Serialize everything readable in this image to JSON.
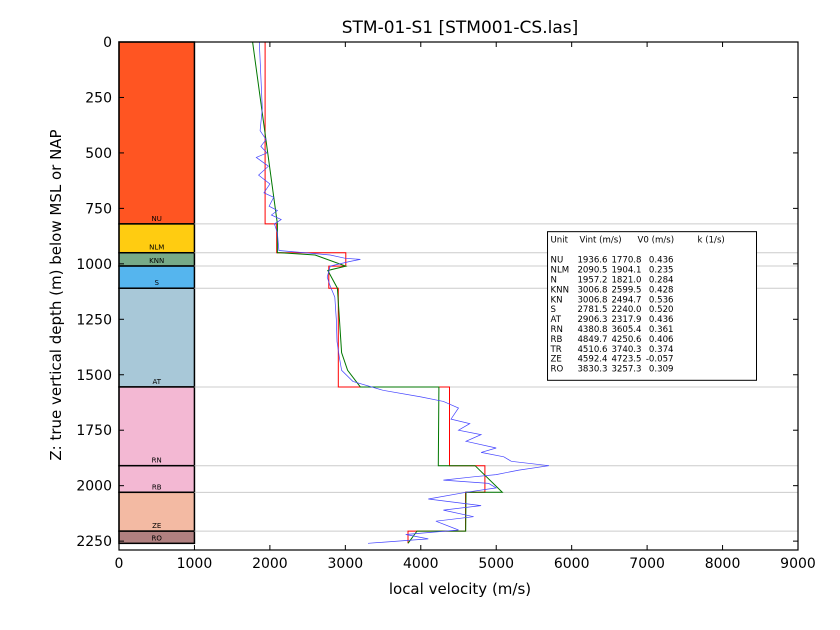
{
  "chart_data": {
    "type": "line",
    "title": "STM-01-S1 [STM001-CS.las]",
    "xlabel": "local velocity (m/s)",
    "ylabel": "Z: true vertical depth (m) below MSL or NAP",
    "xlim": [
      0,
      9000
    ],
    "ylim": [
      2290,
      0
    ],
    "x_ticks": [
      "0",
      "1000",
      "2000",
      "3000",
      "4000",
      "5000",
      "6000",
      "7000",
      "8000",
      "9000"
    ],
    "y_ticks": [
      "0",
      "250",
      "500",
      "750",
      "1000",
      "1250",
      "1500",
      "1750",
      "2000",
      "2250"
    ],
    "units": [
      {
        "label": "NU",
        "top": 0,
        "bottom": 820,
        "color": "#ff5522"
      },
      {
        "label": "NLM",
        "top": 820,
        "bottom": 950,
        "color": "#ffcc11"
      },
      {
        "label": "KNN",
        "top": 950,
        "bottom": 1010,
        "color": "#77aa88"
      },
      {
        "label": "S",
        "top": 1010,
        "bottom": 1110,
        "color": "#55b5ee"
      },
      {
        "label": "AT",
        "top": 1110,
        "bottom": 1555,
        "color": "#a8c8d8"
      },
      {
        "label": "RN",
        "top": 1555,
        "bottom": 1910,
        "color": "#f3b8d3"
      },
      {
        "label": "RB",
        "top": 1910,
        "bottom": 2030,
        "color": "#f3b8d3"
      },
      {
        "label": "ZE",
        "top": 2030,
        "bottom": 2205,
        "color": "#f3baa3"
      },
      {
        "label": "RO",
        "top": 2205,
        "bottom": 2260,
        "color": "#b08080"
      }
    ],
    "series": [
      {
        "color": "#ff0000",
        "x": [
          1936.6,
          1936.6,
          2090.5,
          2090.5,
          3006.8,
          3006.8,
          2781.5,
          2781.5,
          2906.3,
          2906.3,
          4380.8,
          4380.8,
          4849.7,
          4849.7,
          4592.4,
          4592.4,
          3830.3,
          3830.3
        ],
        "y": [
          0,
          820,
          820,
          950,
          950,
          1010,
          1010,
          1110,
          1110,
          1555,
          1555,
          1910,
          1910,
          2030,
          2030,
          2205,
          2205,
          2260
        ]
      },
      {
        "color": "#007700",
        "x": [
          1770.8,
          2100,
          2100,
          2140,
          2599.5,
          3006,
          2767,
          2895,
          2950,
          3030,
          3200,
          4240,
          4232,
          4720,
          5080,
          4600,
          4595,
          3950,
          3830
        ],
        "y": [
          0,
          820,
          950,
          950,
          960,
          1010,
          1030,
          1110,
          1400,
          1480,
          1555,
          1555,
          1910,
          1910,
          2030,
          2030,
          2205,
          2205,
          2260
        ]
      },
      {
        "color": "#4444ff",
        "x": [
          1860,
          1900,
          1870,
          1950,
          1880,
          1960,
          1820,
          1980,
          1850,
          2000,
          1920,
          2050,
          1990,
          2100,
          2020,
          2150,
          2060,
          2100,
          2120,
          2800,
          3000,
          3200,
          3050,
          2800,
          2760,
          2800,
          2860,
          2880,
          2890,
          2920,
          2950,
          3100,
          3500,
          4000,
          4300,
          4500,
          4400,
          4650,
          4500,
          4800,
          4600,
          5000,
          4800,
          5100,
          5200,
          5700,
          5300,
          5000,
          4700,
          4300,
          4900,
          5000,
          4600,
          4100,
          4800,
          4300,
          4700,
          4200,
          4500,
          3800,
          4100,
          3300
        ],
        "y": [
          0,
          300,
          400,
          440,
          470,
          500,
          520,
          560,
          600,
          640,
          680,
          700,
          740,
          760,
          780,
          800,
          820,
          860,
          940,
          960,
          975,
          980,
          990,
          1010,
          1060,
          1100,
          1150,
          1250,
          1350,
          1420,
          1480,
          1530,
          1570,
          1600,
          1620,
          1650,
          1700,
          1720,
          1750,
          1770,
          1800,
          1830,
          1850,
          1870,
          1890,
          1910,
          1930,
          1950,
          1960,
          1975,
          1990,
          2010,
          2030,
          2060,
          2090,
          2110,
          2140,
          2160,
          2200,
          2220,
          2240,
          2260
        ]
      }
    ],
    "table": {
      "header": [
        "Unit",
        "Vint (m/s)",
        "V0 (m/s)",
        "k (1/s)"
      ],
      "rows": [
        [
          "NU",
          "1936.6",
          "1770.8",
          "0.436"
        ],
        [
          "NLM",
          "2090.5",
          "1904.1",
          "0.235"
        ],
        [
          "N",
          "1957.2",
          "1821.0",
          "0.284"
        ],
        [
          "KNN",
          "3006.8",
          "2599.5",
          "0.428"
        ],
        [
          "KN",
          "3006.8",
          "2494.7",
          "0.536"
        ],
        [
          "S",
          "2781.5",
          "2240.0",
          "0.520"
        ],
        [
          "AT",
          "2906.3",
          "2317.9",
          "0.436"
        ],
        [
          "RN",
          "4380.8",
          "3605.4",
          "0.361"
        ],
        [
          "RB",
          "4849.7",
          "4250.6",
          "0.406"
        ],
        [
          "TR",
          "4510.6",
          "3740.3",
          "0.374"
        ],
        [
          "ZE",
          "4592.4",
          "4723.5",
          "-0.057"
        ],
        [
          "RO",
          "3830.3",
          "3257.3",
          "0.309"
        ]
      ]
    }
  }
}
